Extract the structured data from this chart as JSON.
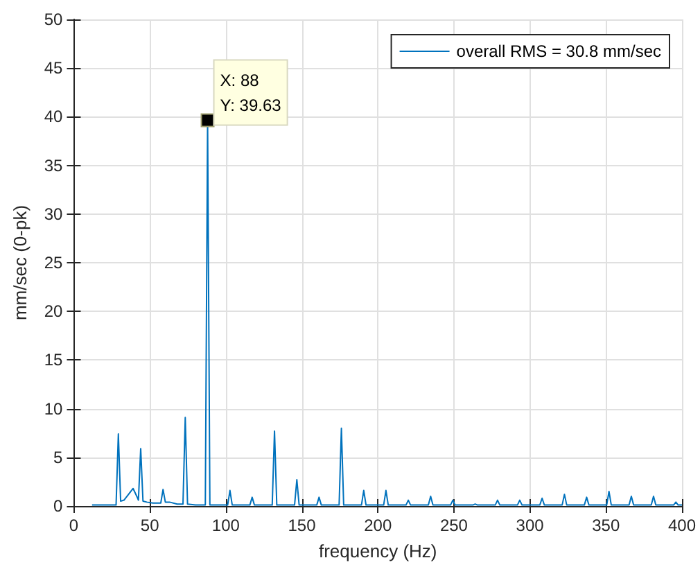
{
  "chart_data": {
    "type": "line",
    "xlabel": "frequency (Hz)",
    "ylabel": "mm/sec (0-pk)",
    "xlim": [
      0,
      400
    ],
    "xticks": [
      0,
      50,
      100,
      150,
      200,
      250,
      300,
      350,
      400
    ],
    "ylim": [
      0,
      50
    ],
    "yticks": [
      0,
      5,
      10,
      15,
      20,
      25,
      30,
      35,
      40,
      45,
      50
    ],
    "grid": true,
    "legend": "top right",
    "annotations": [
      {
        "text": "X: 88\nY: 39.63",
        "x": 88,
        "y": 39.63
      }
    ],
    "series": [
      {
        "name": "overall RMS = 30.8 mm/sec",
        "color": "#0072bd",
        "x": [
          12,
          27.8,
          29.3,
          30.8,
          33,
          36,
          39,
          42,
          42.5,
          44,
          45.5,
          48,
          52,
          57.2,
          58.7,
          60.2,
          63,
          68,
          71.8,
          73.3,
          74.8,
          80,
          86.5,
          88,
          89.5,
          95,
          101.2,
          102.7,
          104.2,
          115.8,
          117.3,
          118.8,
          130.5,
          132,
          133.5,
          145.2,
          146.7,
          148.2,
          159.8,
          161.3,
          162.8,
          174.5,
          176,
          177.5,
          189.2,
          190.7,
          192.2,
          203.8,
          205.3,
          206.8,
          218.5,
          220,
          221.5,
          233.2,
          234.7,
          236.2,
          247.8,
          249.3,
          250.8,
          262.5,
          264,
          265.5,
          277.2,
          278.7,
          280.2,
          291.8,
          293.3,
          294.8,
          306.5,
          308,
          309.5,
          321.2,
          322.7,
          324.2,
          335.8,
          337.3,
          338.8,
          350.5,
          352,
          353.5,
          365.2,
          366.7,
          368.2,
          379.8,
          381.3,
          382.8,
          394.5,
          396,
          397.5,
          400
        ],
        "values": [
          0.1,
          0.1,
          7.4,
          0.5,
          0.6,
          1.2,
          1.8,
          0.8,
          0.6,
          5.9,
          0.5,
          0.4,
          0.3,
          0.3,
          1.7,
          0.4,
          0.4,
          0.2,
          0.2,
          9.1,
          0.2,
          0.1,
          0.1,
          39.63,
          0.1,
          0.1,
          0.1,
          1.6,
          0.1,
          0.1,
          0.9,
          0.1,
          0.1,
          7.7,
          0.1,
          0.1,
          2.7,
          0.1,
          0.1,
          0.9,
          0.1,
          0.1,
          8.0,
          0.1,
          0.1,
          1.6,
          0.1,
          0.1,
          1.6,
          0.1,
          0.1,
          0.6,
          0.1,
          0.1,
          1.0,
          0.1,
          0.1,
          0.6,
          0.1,
          0.1,
          0.2,
          0.1,
          0.1,
          0.6,
          0.1,
          0.1,
          0.6,
          0.1,
          0.1,
          0.8,
          0.1,
          0.1,
          1.2,
          0.1,
          0.1,
          0.9,
          0.1,
          0.1,
          1.5,
          0.1,
          0.1,
          1.0,
          0.1,
          0.1,
          1.0,
          0.1,
          0.1,
          0.4,
          0.1,
          0.1
        ]
      }
    ]
  }
}
